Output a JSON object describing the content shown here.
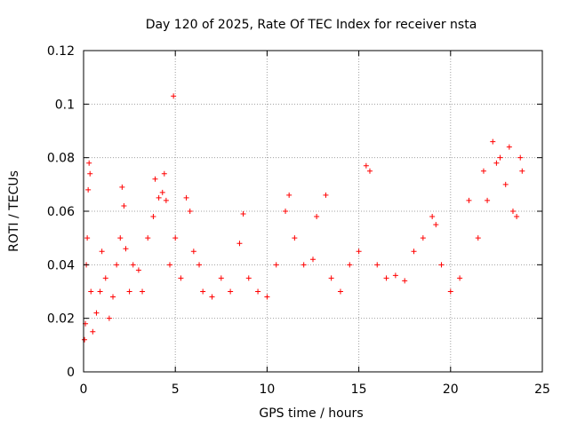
{
  "chart_data": {
    "type": "scatter",
    "title": "Day 120 of 2025, Rate Of TEC Index for receiver nsta",
    "xlabel": "GPS time / hours",
    "ylabel": "ROTI / TECUs",
    "xlim": [
      0,
      25
    ],
    "ylim": [
      0,
      0.12
    ],
    "xticks": [
      0,
      5,
      10,
      15,
      20,
      25
    ],
    "xtick_labels": [
      "0",
      "5",
      "10",
      "15",
      "20",
      "25"
    ],
    "yticks": [
      0,
      0.02,
      0.04,
      0.06,
      0.08,
      0.1,
      0.12
    ],
    "ytick_labels": [
      "0",
      "0.02",
      "0.04",
      "0.06",
      "0.08",
      "0.1",
      "0.12"
    ],
    "grid": true,
    "marker": "+",
    "marker_color": "#ff0000",
    "series": [
      {
        "name": "ROTI",
        "points": [
          [
            0.05,
            0.012
          ],
          [
            0.1,
            0.018
          ],
          [
            0.15,
            0.04
          ],
          [
            0.2,
            0.05
          ],
          [
            0.25,
            0.068
          ],
          [
            0.3,
            0.078
          ],
          [
            0.35,
            0.074
          ],
          [
            0.4,
            0.03
          ],
          [
            0.5,
            0.015
          ],
          [
            0.7,
            0.022
          ],
          [
            0.9,
            0.03
          ],
          [
            1.0,
            0.045
          ],
          [
            1.2,
            0.035
          ],
          [
            1.4,
            0.02
          ],
          [
            1.6,
            0.028
          ],
          [
            1.8,
            0.04
          ],
          [
            2.0,
            0.05
          ],
          [
            2.1,
            0.069
          ],
          [
            2.2,
            0.062
          ],
          [
            2.3,
            0.046
          ],
          [
            2.5,
            0.03
          ],
          [
            2.7,
            0.04
          ],
          [
            3.0,
            0.038
          ],
          [
            3.2,
            0.03
          ],
          [
            3.5,
            0.05
          ],
          [
            3.8,
            0.058
          ],
          [
            3.9,
            0.072
          ],
          [
            4.1,
            0.065
          ],
          [
            4.3,
            0.067
          ],
          [
            4.4,
            0.074
          ],
          [
            4.5,
            0.064
          ],
          [
            4.7,
            0.04
          ],
          [
            4.9,
            0.103
          ],
          [
            5.0,
            0.05
          ],
          [
            5.3,
            0.035
          ],
          [
            5.6,
            0.065
          ],
          [
            5.8,
            0.06
          ],
          [
            6.0,
            0.045
          ],
          [
            6.3,
            0.04
          ],
          [
            6.5,
            0.03
          ],
          [
            7.0,
            0.028
          ],
          [
            7.5,
            0.035
          ],
          [
            8.0,
            0.03
          ],
          [
            8.5,
            0.048
          ],
          [
            8.7,
            0.059
          ],
          [
            9.0,
            0.035
          ],
          [
            9.5,
            0.03
          ],
          [
            10.0,
            0.028
          ],
          [
            10.5,
            0.04
          ],
          [
            11.0,
            0.06
          ],
          [
            11.2,
            0.066
          ],
          [
            11.5,
            0.05
          ],
          [
            12.0,
            0.04
          ],
          [
            12.5,
            0.042
          ],
          [
            12.7,
            0.058
          ],
          [
            13.2,
            0.066
          ],
          [
            13.5,
            0.035
          ],
          [
            14.0,
            0.03
          ],
          [
            14.5,
            0.04
          ],
          [
            15.0,
            0.045
          ],
          [
            15.4,
            0.077
          ],
          [
            15.6,
            0.075
          ],
          [
            16.0,
            0.04
          ],
          [
            16.5,
            0.035
          ],
          [
            17.0,
            0.036
          ],
          [
            17.5,
            0.034
          ],
          [
            18.0,
            0.045
          ],
          [
            18.5,
            0.05
          ],
          [
            19.0,
            0.058
          ],
          [
            19.2,
            0.055
          ],
          [
            19.5,
            0.04
          ],
          [
            20.0,
            0.03
          ],
          [
            20.5,
            0.035
          ],
          [
            21.0,
            0.064
          ],
          [
            21.5,
            0.05
          ],
          [
            21.8,
            0.075
          ],
          [
            22.0,
            0.064
          ],
          [
            22.3,
            0.086
          ],
          [
            22.5,
            0.078
          ],
          [
            22.7,
            0.08
          ],
          [
            23.0,
            0.07
          ],
          [
            23.2,
            0.084
          ],
          [
            23.4,
            0.06
          ],
          [
            23.6,
            0.058
          ],
          [
            23.8,
            0.08
          ],
          [
            23.9,
            0.075
          ]
        ]
      }
    ]
  }
}
